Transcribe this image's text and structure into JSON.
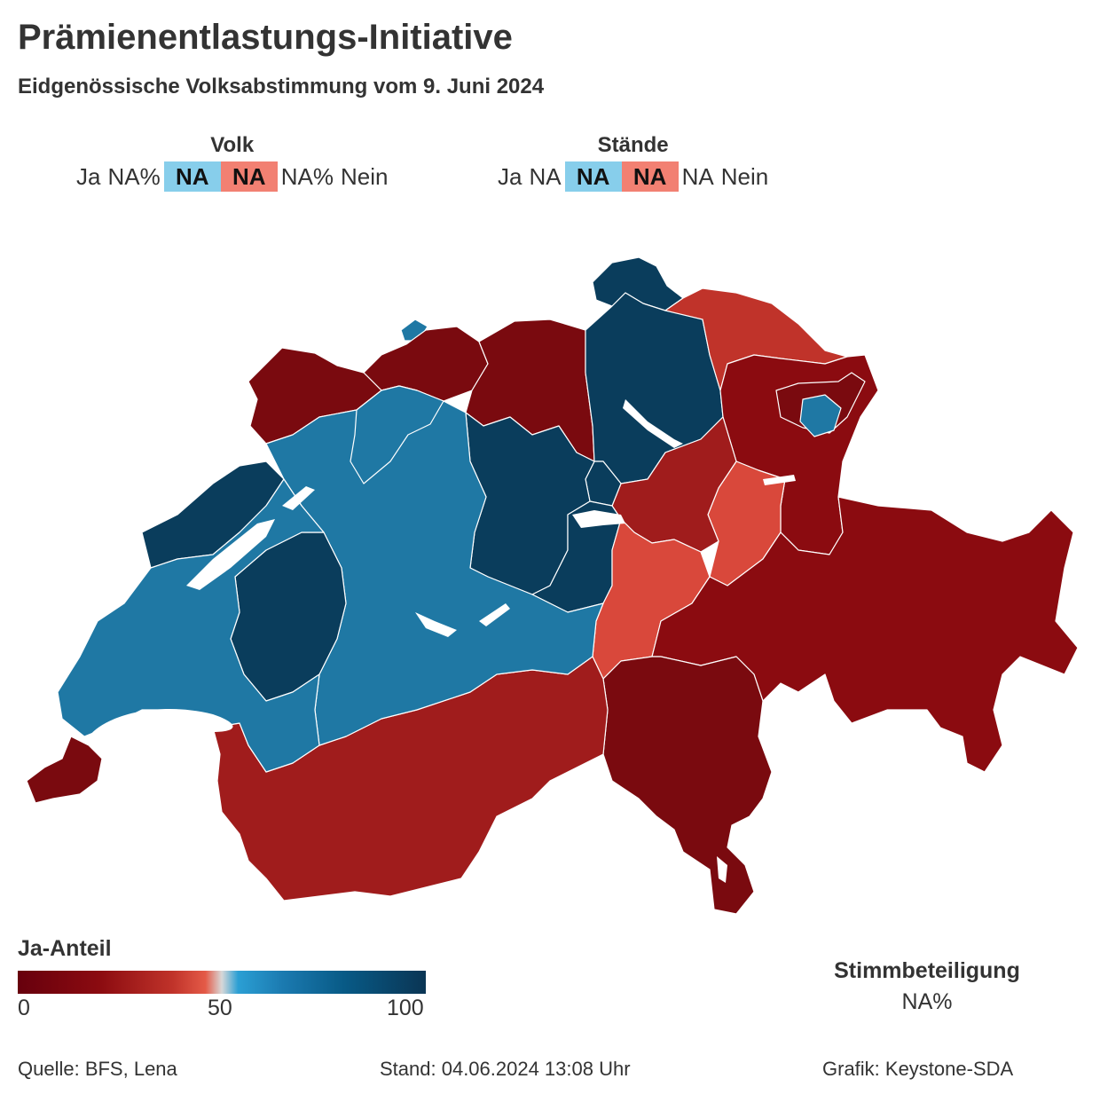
{
  "title": "Prämienentlastungs-Initiative",
  "subtitle": "Eidgenössische Volksabstimmung vom 9. Juni 2024",
  "volk": {
    "title": "Volk",
    "yes_label": "Ja",
    "yes_pct": "NA%",
    "yes_box": "NA",
    "no_box": "NA",
    "no_pct": "NA%",
    "no_label": "Nein"
  },
  "staende": {
    "title": "Stände",
    "yes_label": "Ja",
    "yes_value": "NA",
    "yes_box": "NA",
    "no_box": "NA",
    "no_value": "NA",
    "no_label": "Nein"
  },
  "legend": {
    "title": "Ja-Anteil",
    "tick_min": "0",
    "tick_mid": "50",
    "tick_max": "100"
  },
  "turnout": {
    "label": "Stimmbeteiligung",
    "value": "NA%"
  },
  "footer": {
    "source": "Quelle: BFS, Lena",
    "status": "Stand: 04.06.2024 13:08 Uhr",
    "credit": "Grafik: Keystone-SDA"
  },
  "colors": {
    "yes_box": "#87ceeb",
    "no_box": "#f28072",
    "dark_blue": "#0a3d5c",
    "mid_blue": "#1f78a4",
    "light_red": "#d9483b",
    "mid_red": "#a01c1c",
    "dark_red": "#7a0a0f"
  }
}
